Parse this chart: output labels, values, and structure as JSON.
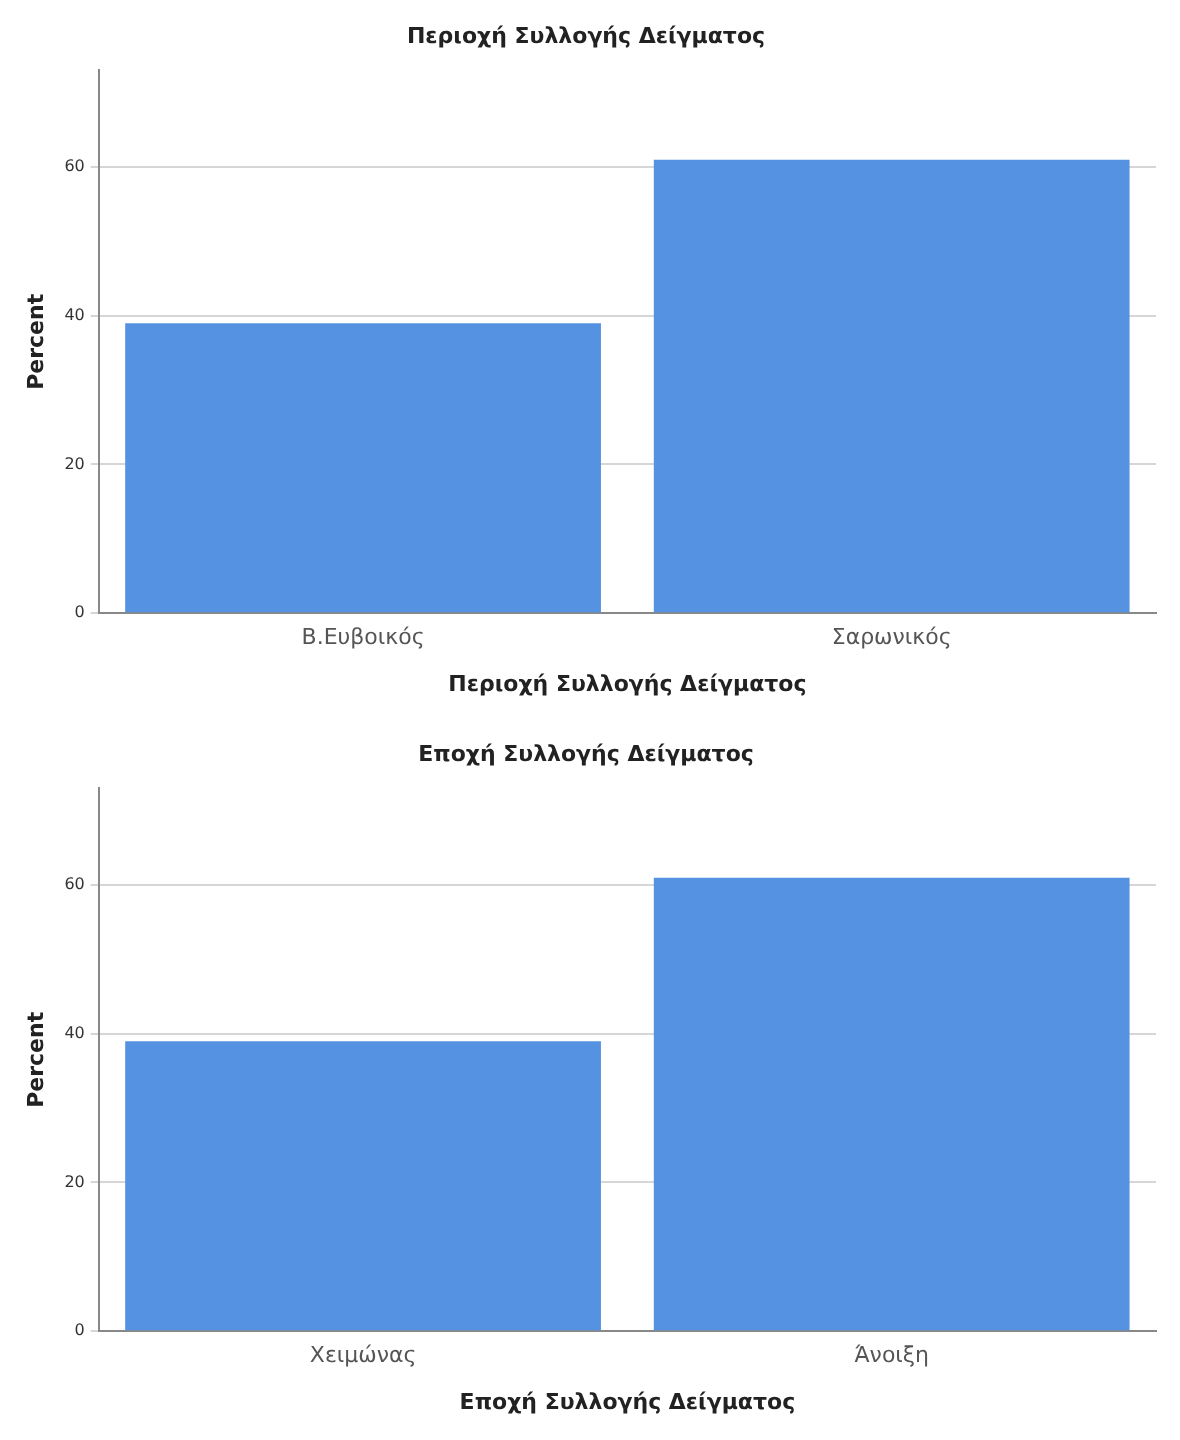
{
  "chart_data": [
    {
      "type": "bar",
      "title": "Περιοχή Συλλογής Δείγματος",
      "xlabel": "Περιοχή Συλλογής Δείγματος",
      "ylabel": "Percent",
      "categories": [
        "Β.Ευβοικός",
        "Σαρωνικός"
      ],
      "values": [
        39,
        61
      ],
      "color": "#5593e2",
      "ylim": [
        0,
        73
      ],
      "yticks": [
        0,
        20,
        40,
        60
      ],
      "grid": "y"
    },
    {
      "type": "bar",
      "title": "Εποχή Συλλογής Δείγματος",
      "xlabel": "Εποχή Συλλογής Δείγματος",
      "ylabel": "Percent",
      "categories": [
        "Χειμώνας",
        "Άνοιξη"
      ],
      "values": [
        39,
        61
      ],
      "color": "#5593e2",
      "ylim": [
        0,
        73
      ],
      "yticks": [
        0,
        20,
        40,
        60
      ],
      "grid": "y"
    }
  ]
}
